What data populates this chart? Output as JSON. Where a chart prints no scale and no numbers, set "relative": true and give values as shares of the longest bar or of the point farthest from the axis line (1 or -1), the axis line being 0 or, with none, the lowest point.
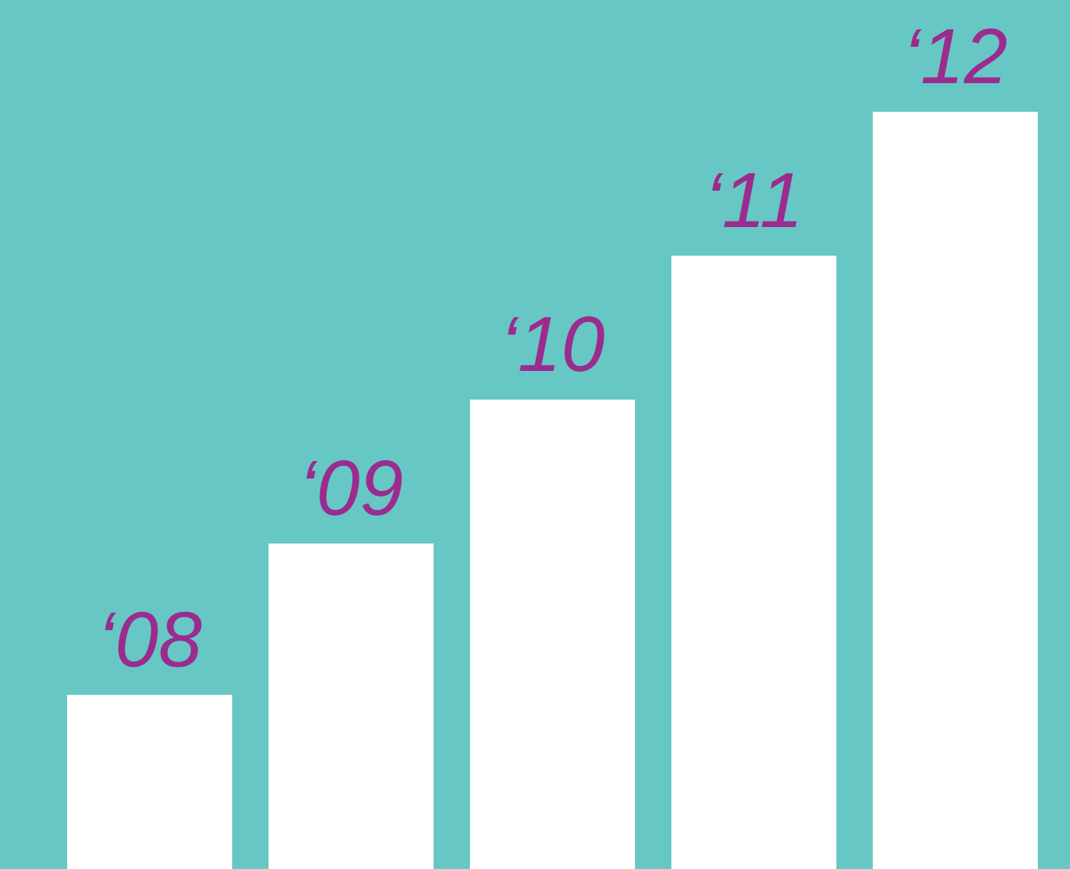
{
  "chart_data": {
    "type": "bar",
    "relative": true,
    "categories": [
      "‘08",
      "‘09",
      "‘10",
      "‘11",
      "‘12"
    ],
    "values": [
      0.23,
      0.43,
      0.62,
      0.81,
      1
    ],
    "color": "#ffffff"
  }
}
